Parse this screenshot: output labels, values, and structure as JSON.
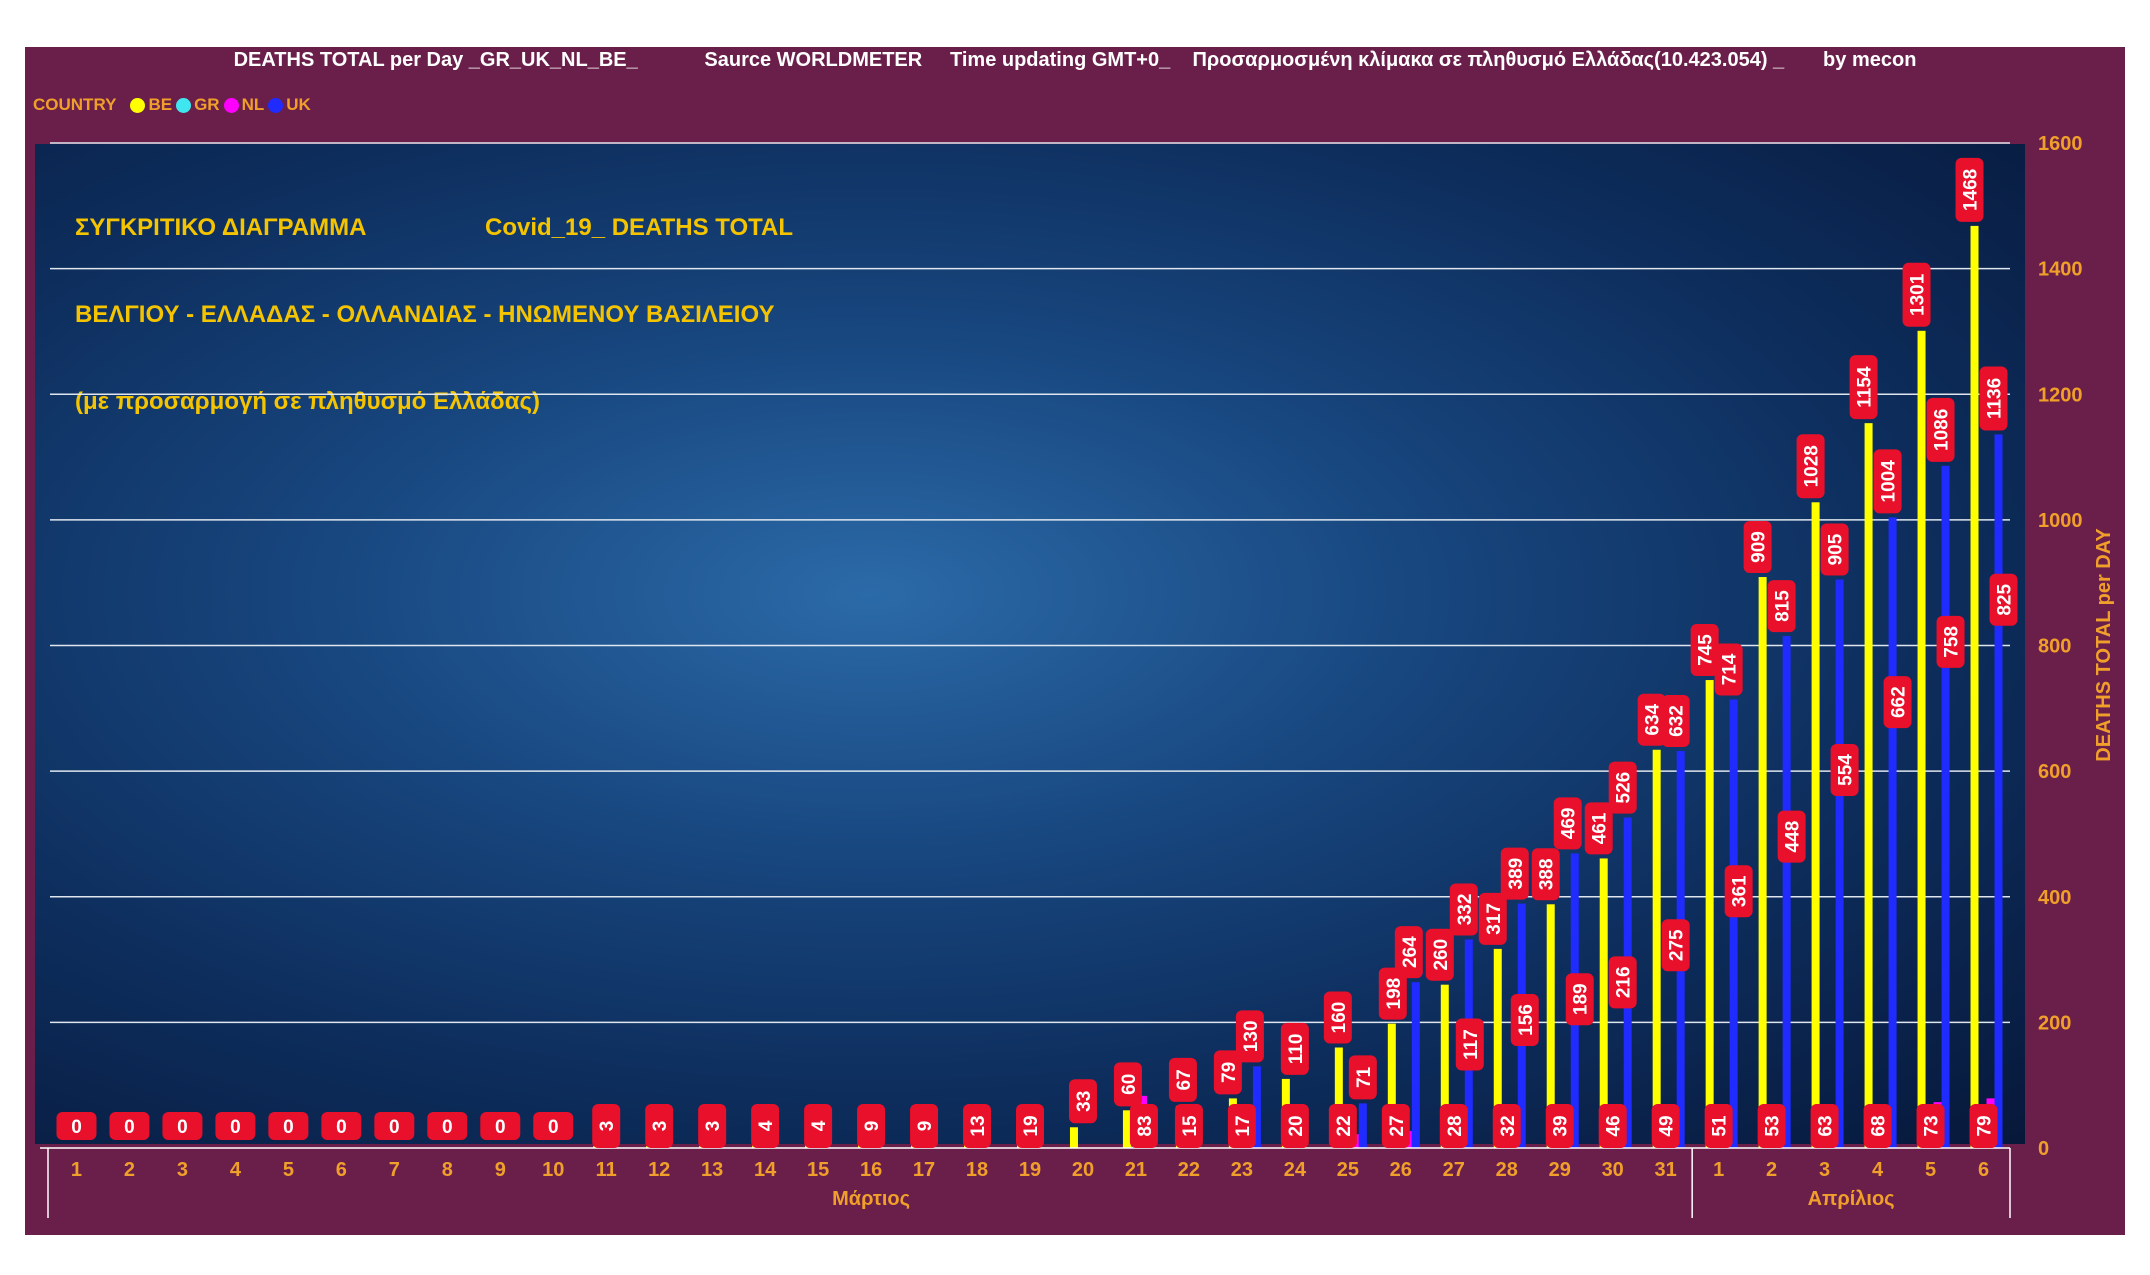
{
  "chart_data": {
    "type": "bar",
    "title": "DEATHS TOTAL per Day _GR_UK_NL_BE_            Saurce WORLDMETER     Time updating GMT+0_    Προσαρμοσμένη κλίμακα σε πληθυσμό Ελλάδας(10.423.054) _       by mecon",
    "annotation": {
      "line1_left": "ΣΥΓΚΡΙΤΙΚΟ ΔΙΑΓΡΑΜΜΑ",
      "line1_right": "Covid_19_ DEATHS TOTAL",
      "line2": "ΒΕΛΓΙΟΥ - ΕΛΛΑΔΑΣ - ΟΛΛΑΝΔΙΑΣ - ΗΝΩΜΕΝΟΥ ΒΑΣΙΛΕΙΟΥ",
      "line3": "(με προσαρμογή σε πληθυσμό Ελλάδας)"
    },
    "legend_label": "COUNTRY",
    "legend_position": "top-left",
    "ylabel": "DEATHS TOTAL per DAY",
    "ylim": [
      0,
      1600
    ],
    "yticks": [
      0,
      200,
      400,
      600,
      800,
      1000,
      1200,
      1400,
      1600
    ],
    "grid": true,
    "categories": [
      "1",
      "2",
      "3",
      "4",
      "5",
      "6",
      "7",
      "8",
      "9",
      "10",
      "11",
      "12",
      "13",
      "14",
      "15",
      "16",
      "17",
      "18",
      "19",
      "20",
      "21",
      "22",
      "23",
      "24",
      "25",
      "26",
      "27",
      "28",
      "29",
      "30",
      "31",
      "1",
      "2",
      "3",
      "4",
      "5",
      "6"
    ],
    "month_groups": [
      {
        "label": "Μάρτιος",
        "count": 31
      },
      {
        "label": "Απρίλιος",
        "count": 6
      }
    ],
    "series": [
      {
        "name": "BE",
        "color": "#ffff00",
        "values": [
          0,
          0,
          0,
          0,
          0,
          0,
          0,
          0,
          0,
          0,
          3,
          3,
          3,
          4,
          4,
          9,
          9,
          13,
          19,
          33,
          60,
          67,
          79,
          110,
          160,
          198,
          260,
          317,
          388,
          461,
          634,
          745,
          909,
          1028,
          1154,
          1301,
          1468
        ]
      },
      {
        "name": "GR",
        "color": "#3fe6f0",
        "values": [
          0,
          0,
          0,
          0,
          0,
          0,
          0,
          0,
          0,
          0,
          0,
          0,
          0,
          0,
          0,
          0,
          0,
          0,
          0,
          0,
          3,
          4,
          5,
          6,
          7,
          8,
          9,
          10,
          11,
          12,
          13,
          14,
          16,
          17,
          18,
          20,
          22
        ]
      },
      {
        "name": "NL",
        "color": "#ff00ff",
        "values": [
          0,
          0,
          0,
          0,
          0,
          0,
          0,
          0,
          0,
          0,
          0,
          0,
          0,
          0,
          0,
          0,
          0,
          0,
          0,
          0,
          83,
          15,
          17,
          20,
          22,
          27,
          28,
          32,
          39,
          46,
          49,
          51,
          53,
          63,
          68,
          73,
          79
        ]
      },
      {
        "name": "UK",
        "color": "#1f2bff",
        "values": [
          0,
          0,
          0,
          0,
          0,
          0,
          0,
          0,
          0,
          0,
          0,
          0,
          0,
          0,
          0,
          0,
          0,
          0,
          0,
          0,
          0,
          0,
          130,
          0,
          71,
          264,
          332,
          389,
          469,
          526,
          632,
          714,
          815,
          905,
          1004,
          1086,
          1136
        ]
      }
    ],
    "data_labels": [
      {
        "text": "0",
        "cat": 0,
        "y": 0,
        "dx": 0
      },
      {
        "text": "0",
        "cat": 1,
        "y": 0,
        "dx": 0
      },
      {
        "text": "0",
        "cat": 2,
        "y": 0,
        "dx": 0
      },
      {
        "text": "0",
        "cat": 3,
        "y": 0,
        "dx": 0
      },
      {
        "text": "0",
        "cat": 4,
        "y": 0,
        "dx": 0
      },
      {
        "text": "0",
        "cat": 5,
        "y": 0,
        "dx": 0
      },
      {
        "text": "0",
        "cat": 6,
        "y": 0,
        "dx": 0
      },
      {
        "text": "0",
        "cat": 7,
        "y": 0,
        "dx": 0
      },
      {
        "text": "0",
        "cat": 8,
        "y": 0,
        "dx": 0
      },
      {
        "text": "0",
        "cat": 9,
        "y": 0,
        "dx": 0
      },
      {
        "text": "3",
        "cat": 10,
        "y": 3,
        "dx": 0
      },
      {
        "text": "3",
        "cat": 11,
        "y": 3,
        "dx": 0
      },
      {
        "text": "3",
        "cat": 12,
        "y": 3,
        "dx": 0
      },
      {
        "text": "4",
        "cat": 13,
        "y": 4,
        "dx": 0
      },
      {
        "text": "4",
        "cat": 14,
        "y": 4,
        "dx": 0
      },
      {
        "text": "9",
        "cat": 15,
        "y": 9,
        "dx": 0
      },
      {
        "text": "9",
        "cat": 16,
        "y": 9,
        "dx": 0
      },
      {
        "text": "13",
        "cat": 17,
        "y": 13,
        "dx": 0
      },
      {
        "text": "19",
        "cat": 18,
        "y": 19,
        "dx": 0
      },
      {
        "text": "33",
        "cat": 19,
        "y": 33,
        "dx": 0
      },
      {
        "text": "60",
        "cat": 20,
        "y": 60,
        "dx": -8
      },
      {
        "text": "83",
        "cat": 20,
        "y": 3,
        "dx": 8
      },
      {
        "text": "67",
        "cat": 21,
        "y": 67,
        "dx": -6
      },
      {
        "text": "15",
        "cat": 21,
        "y": 4,
        "dx": 0
      },
      {
        "text": "79",
        "cat": 22,
        "y": 79,
        "dx": -14
      },
      {
        "text": "130",
        "cat": 22,
        "y": 130,
        "dx": 8
      },
      {
        "text": "17",
        "cat": 22,
        "y": 5,
        "dx": 0
      },
      {
        "text": "110",
        "cat": 23,
        "y": 110,
        "dx": 0
      },
      {
        "text": "20",
        "cat": 23,
        "y": 6,
        "dx": 0
      },
      {
        "text": "160",
        "cat": 24,
        "y": 160,
        "dx": -10
      },
      {
        "text": "71",
        "cat": 24,
        "y": 71,
        "dx": 15
      },
      {
        "text": "22",
        "cat": 24,
        "y": 7,
        "dx": -5
      },
      {
        "text": "198",
        "cat": 25,
        "y": 198,
        "dx": -8
      },
      {
        "text": "264",
        "cat": 25,
        "y": 264,
        "dx": 8
      },
      {
        "text": "27",
        "cat": 25,
        "y": 8,
        "dx": -5
      },
      {
        "text": "260",
        "cat": 26,
        "y": 260,
        "dx": -14
      },
      {
        "text": "332",
        "cat": 26,
        "y": 332,
        "dx": 10
      },
      {
        "text": "117",
        "cat": 26,
        "y": 117,
        "dx": 16
      },
      {
        "text": "28",
        "cat": 26,
        "y": 9,
        "dx": 0
      },
      {
        "text": "317",
        "cat": 27,
        "y": 317,
        "dx": -14
      },
      {
        "text": "389",
        "cat": 27,
        "y": 389,
        "dx": 8
      },
      {
        "text": "156",
        "cat": 27,
        "y": 156,
        "dx": 18
      },
      {
        "text": "32",
        "cat": 27,
        "y": 10,
        "dx": 0
      },
      {
        "text": "388",
        "cat": 28,
        "y": 388,
        "dx": -14
      },
      {
        "text": "469",
        "cat": 28,
        "y": 469,
        "dx": 8
      },
      {
        "text": "189",
        "cat": 28,
        "y": 189,
        "dx": 20
      },
      {
        "text": "39",
        "cat": 28,
        "y": 11,
        "dx": 0
      },
      {
        "text": "461",
        "cat": 29,
        "y": 461,
        "dx": -14
      },
      {
        "text": "526",
        "cat": 29,
        "y": 526,
        "dx": 10
      },
      {
        "text": "216",
        "cat": 29,
        "y": 216,
        "dx": 10
      },
      {
        "text": "46",
        "cat": 29,
        "y": 12,
        "dx": 0
      },
      {
        "text": "634",
        "cat": 30,
        "y": 634,
        "dx": -14
      },
      {
        "text": "632",
        "cat": 30,
        "y": 632,
        "dx": 10
      },
      {
        "text": "275",
        "cat": 30,
        "y": 275,
        "dx": 10
      },
      {
        "text": "49",
        "cat": 30,
        "y": 13,
        "dx": 0
      },
      {
        "text": "745",
        "cat": 31,
        "y": 745,
        "dx": -14
      },
      {
        "text": "714",
        "cat": 31,
        "y": 714,
        "dx": 10
      },
      {
        "text": "361",
        "cat": 31,
        "y": 361,
        "dx": 20
      },
      {
        "text": "51",
        "cat": 31,
        "y": 14,
        "dx": 0
      },
      {
        "text": "909",
        "cat": 32,
        "y": 909,
        "dx": -14
      },
      {
        "text": "815",
        "cat": 32,
        "y": 815,
        "dx": 10
      },
      {
        "text": "448",
        "cat": 32,
        "y": 448,
        "dx": 20
      },
      {
        "text": "53",
        "cat": 32,
        "y": 16,
        "dx": 0
      },
      {
        "text": "1028",
        "cat": 33,
        "y": 1028,
        "dx": -14
      },
      {
        "text": "905",
        "cat": 33,
        "y": 905,
        "dx": 10
      },
      {
        "text": "554",
        "cat": 33,
        "y": 554,
        "dx": 20
      },
      {
        "text": "63",
        "cat": 33,
        "y": 17,
        "dx": 0
      },
      {
        "text": "1154",
        "cat": 34,
        "y": 1154,
        "dx": -14
      },
      {
        "text": "1004",
        "cat": 34,
        "y": 1004,
        "dx": 10
      },
      {
        "text": "662",
        "cat": 34,
        "y": 662,
        "dx": 20
      },
      {
        "text": "68",
        "cat": 34,
        "y": 18,
        "dx": 0
      },
      {
        "text": "1301",
        "cat": 35,
        "y": 1301,
        "dx": -14
      },
      {
        "text": "1086",
        "cat": 35,
        "y": 1086,
        "dx": 10
      },
      {
        "text": "758",
        "cat": 35,
        "y": 758,
        "dx": 20
      },
      {
        "text": "73",
        "cat": 35,
        "y": 20,
        "dx": 0
      },
      {
        "text": "1468",
        "cat": 36,
        "y": 1468,
        "dx": -14
      },
      {
        "text": "1136",
        "cat": 36,
        "y": 1136,
        "dx": 10
      },
      {
        "text": "825",
        "cat": 36,
        "y": 825,
        "dx": 20
      },
      {
        "text": "79",
        "cat": 36,
        "y": 22,
        "dx": 0
      }
    ]
  }
}
